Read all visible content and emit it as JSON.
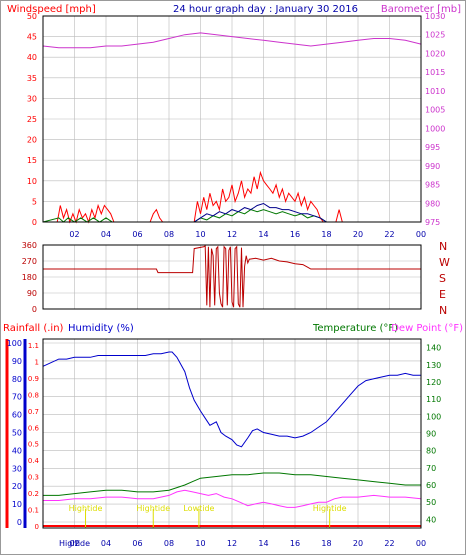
{
  "colors": {
    "wind": "#ff0000",
    "gust": "#ff0000",
    "wind_avg": "#00008b",
    "baro": "#cc33cc",
    "dir": "#bb0000",
    "rain": "#ff0000",
    "humidity": "#0000cc",
    "temp": "#007700",
    "dew": "#ff33ff",
    "tide": "#dddd00",
    "grid": "#bbbbbb",
    "axis": "#000000",
    "title": "#0000aa"
  },
  "chart_data": [
    {
      "type": "line",
      "panel": "wind-barometer",
      "title": "24 hour graph day : January 30 2016",
      "ylabel_left": "Windspeed [mph]",
      "ylabel_right": "Barometer [mb]",
      "ylim_left": [
        0,
        50
      ],
      "ylim_right": [
        975,
        1030
      ],
      "yticks_left": [
        "0",
        "5",
        "10",
        "15",
        "20",
        "25",
        "30",
        "35",
        "40",
        "45",
        "50"
      ],
      "yticks_right": [
        "975",
        "980",
        "985",
        "990",
        "995",
        "1000",
        "1005",
        "1010",
        "1015",
        "1020",
        "1025",
        "1030"
      ],
      "xlim": [
        0,
        24
      ],
      "xticks": [
        "02",
        "04",
        "06",
        "08",
        "10",
        "12",
        "14",
        "16",
        "18",
        "20",
        "22",
        "00"
      ],
      "series": [
        {
          "role": "wind-gust",
          "x": [
            0,
            0.9,
            1,
            1.1,
            1.3,
            1.5,
            1.7,
            1.9,
            2.1,
            2.3,
            2.5,
            2.7,
            2.9,
            3.1,
            3.3,
            3.5,
            3.7,
            3.9,
            4.1,
            4.3,
            4.5,
            6.8,
            7,
            7.2,
            7.4,
            7.6,
            9.6,
            9.8,
            10,
            10.2,
            10.4,
            10.6,
            10.8,
            11,
            11.2,
            11.4,
            11.6,
            11.8,
            12,
            12.2,
            12.4,
            12.6,
            12.8,
            13,
            13.2,
            13.4,
            13.6,
            13.8,
            14,
            14.2,
            14.4,
            14.6,
            14.8,
            15,
            15.2,
            15.4,
            15.6,
            15.8,
            16,
            16.2,
            16.4,
            16.6,
            16.8,
            17,
            17.2,
            17.4,
            17.6,
            17.8,
            18,
            18.2,
            18.4,
            18.6,
            18.8,
            19,
            19.2,
            24
          ],
          "y": [
            0,
            0,
            2,
            4,
            1,
            3,
            0,
            2,
            0,
            3,
            1,
            2,
            0,
            3,
            1,
            4,
            2,
            4,
            3,
            2,
            0,
            0,
            2,
            3,
            1,
            0,
            0,
            5,
            2,
            6,
            3,
            7,
            4,
            5,
            3,
            8,
            5,
            6,
            9,
            5,
            7,
            10,
            6,
            8,
            7,
            11,
            8,
            12,
            10,
            9,
            8,
            7,
            9,
            6,
            8,
            5,
            7,
            6,
            5,
            7,
            4,
            6,
            3,
            5,
            4,
            3,
            1,
            0,
            0,
            0,
            0,
            0,
            3,
            0,
            0,
            0
          ]
        },
        {
          "role": "wind-avg",
          "x": [
            0,
            9.6,
            10,
            10.4,
            10.8,
            11.2,
            11.6,
            12,
            12.4,
            12.8,
            13.2,
            13.6,
            14,
            14.4,
            14.8,
            15.2,
            15.6,
            16,
            16.4,
            16.8,
            17.2,
            17.6,
            18,
            24
          ],
          "y": [
            0,
            0,
            1,
            2,
            1.5,
            2.5,
            2,
            3,
            2.5,
            3.5,
            3,
            4,
            4.5,
            3.5,
            3.5,
            3,
            3,
            2.5,
            2,
            2,
            1.5,
            1,
            0,
            0
          ]
        },
        {
          "role": "wind-green",
          "x": [
            0,
            1,
            1.3,
            1.6,
            2,
            2.4,
            2.8,
            3.2,
            3.6,
            4,
            4.4,
            9.6,
            10,
            10.4,
            10.8,
            11.2,
            11.6,
            12,
            12.4,
            12.8,
            13.2,
            13.6,
            14,
            14.4,
            14.8,
            15.2,
            15.6,
            16,
            16.4,
            16.8,
            17.2,
            17.6,
            18,
            24
          ],
          "y": [
            0,
            1,
            0,
            1,
            0,
            1,
            0,
            1,
            0,
            1,
            0,
            0,
            1,
            0.5,
            1.5,
            1,
            2,
            1.5,
            2.5,
            2,
            3,
            2.5,
            3,
            2.5,
            2,
            2.5,
            2,
            1.5,
            2,
            1,
            1.5,
            1,
            0,
            0
          ]
        },
        {
          "role": "barometer",
          "x": [
            0,
            1,
            2,
            3,
            4,
            5,
            6,
            7,
            8,
            9,
            10,
            11,
            12,
            13,
            14,
            15,
            16,
            17,
            18,
            19,
            20,
            21,
            22,
            23,
            24
          ],
          "y": [
            1022,
            1021.5,
            1021.5,
            1021.5,
            1022,
            1022,
            1022.5,
            1023,
            1024,
            1025,
            1025.5,
            1025,
            1024.5,
            1024,
            1023.5,
            1023,
            1022.5,
            1022,
            1022.5,
            1023,
            1023.5,
            1024,
            1024,
            1023.5,
            1022.5
          ]
        }
      ]
    },
    {
      "type": "line",
      "panel": "wind-direction",
      "ylim": [
        0,
        360
      ],
      "yticks": [
        "0",
        "90",
        "180",
        "270",
        "360"
      ],
      "compass_labels": [
        "N",
        "W",
        "S",
        "E",
        "N"
      ],
      "xlim": [
        0,
        24
      ],
      "series": [
        {
          "role": "direction",
          "x": [
            0,
            7.2,
            7.3,
            9.5,
            9.6,
            10.2,
            10.3,
            10.4,
            10.5,
            10.6,
            10.7,
            10.8,
            10.9,
            11,
            11.1,
            11.2,
            11.3,
            11.4,
            11.5,
            11.6,
            11.7,
            11.8,
            11.9,
            12,
            12.1,
            12.2,
            12.3,
            12.4,
            12.5,
            12.6,
            12.7,
            12.8,
            12.9,
            13,
            13.1,
            13.5,
            14,
            14.5,
            15,
            15.5,
            16,
            16.5,
            16.8,
            17,
            24
          ],
          "y": [
            225,
            225,
            205,
            205,
            340,
            350,
            355,
            20,
            350,
            10,
            340,
            300,
            20,
            340,
            350,
            90,
            30,
            10,
            350,
            340,
            20,
            330,
            350,
            40,
            10,
            340,
            350,
            30,
            10,
            345,
            10,
            240,
            300,
            260,
            280,
            285,
            275,
            285,
            270,
            265,
            255,
            250,
            235,
            225,
            225
          ]
        }
      ]
    },
    {
      "type": "line",
      "panel": "rain-humidity-temperature",
      "ylabel_rain": "Rainfall (.in)",
      "ylabel_humidity": "Humidity (%)",
      "ylabel_temp": "Temperature (°F)",
      "ylabel_dew": "Dew Point (°F)",
      "rain_ticks": [
        "0",
        "0.1",
        "0.2",
        "0.3",
        "0.4",
        "0.5",
        "0.6",
        "0.7",
        "0.8",
        "0.9",
        "1",
        "1.1"
      ],
      "humidity_ticks": [
        "0",
        "10",
        "20",
        "30",
        "40",
        "50",
        "60",
        "70",
        "80",
        "90",
        "100"
      ],
      "temp_ticks": [
        "40",
        "50",
        "60",
        "70",
        "80",
        "90",
        "100",
        "110",
        "120",
        "130",
        "140"
      ],
      "ylim_humidity": [
        0,
        100
      ],
      "ylim_temp": [
        35,
        145
      ],
      "xlim": [
        0,
        24
      ],
      "xticks": [
        "02",
        "04",
        "06",
        "08",
        "10",
        "12",
        "14",
        "16",
        "18",
        "20",
        "22",
        "00"
      ],
      "tide_labels": [
        {
          "text": "Hightide",
          "x": 2.7
        },
        {
          "text": "Hightide",
          "x": 7.0
        },
        {
          "text": "Lowtide",
          "x": 9.9
        },
        {
          "text": "Hightide",
          "x": 18.2
        }
      ],
      "bottom_labels": [
        {
          "text": "High",
          "x": 1.6
        },
        {
          "text": "tide",
          "x": 2.5
        }
      ],
      "series": [
        {
          "role": "humidity",
          "x": [
            0,
            0.5,
            1,
            1.5,
            2,
            2.5,
            3,
            3.5,
            4,
            4.5,
            5,
            5.5,
            6,
            6.5,
            7,
            7.5,
            8,
            8.2,
            8.5,
            9,
            9.3,
            9.6,
            10,
            10.3,
            10.6,
            11,
            11.3,
            11.6,
            12,
            12.3,
            12.6,
            13,
            13.3,
            13.6,
            14,
            14.5,
            15,
            15.5,
            16,
            16.5,
            17,
            17.5,
            18,
            18.5,
            19,
            19.5,
            20,
            20.5,
            21,
            21.5,
            22,
            22.5,
            23,
            23.5,
            24
          ],
          "y": [
            87,
            89,
            91,
            91,
            92,
            92,
            92,
            93,
            93,
            93,
            93,
            93,
            93,
            93,
            94,
            94,
            95,
            95,
            92,
            84,
            75,
            68,
            62,
            58,
            54,
            56,
            50,
            48,
            46,
            43,
            42,
            47,
            51,
            52,
            50,
            49,
            48,
            48,
            47,
            48,
            50,
            53,
            56,
            61,
            66,
            71,
            76,
            79,
            80,
            81,
            82,
            82,
            83,
            82,
            82
          ]
        },
        {
          "role": "temperature",
          "x": [
            0,
            1,
            2,
            3,
            4,
            5,
            6,
            7,
            8,
            9,
            9.5,
            10,
            11,
            12,
            13,
            14,
            15,
            16,
            17,
            18,
            19,
            20,
            21,
            22,
            23,
            24
          ],
          "y": [
            54,
            54,
            55,
            56,
            57,
            57,
            56,
            56,
            57,
            60,
            62,
            64,
            65,
            66,
            66,
            67,
            67,
            66,
            66,
            65,
            64,
            63,
            62,
            61,
            60,
            60
          ]
        },
        {
          "role": "dew-point",
          "x": [
            0,
            1,
            2,
            3,
            4,
            5,
            6,
            7,
            8,
            8.5,
            9,
            9.5,
            10,
            10.5,
            11,
            11.5,
            12,
            12.5,
            13,
            13.5,
            14,
            14.5,
            15,
            15.5,
            16,
            16.5,
            17,
            17.5,
            18,
            18.5,
            19,
            20,
            21,
            22,
            23,
            24
          ],
          "y": [
            51,
            51,
            52,
            52,
            53,
            53,
            52,
            52,
            54,
            56,
            57,
            56,
            55,
            54,
            55,
            53,
            52,
            50,
            48,
            49,
            50,
            49,
            48,
            47,
            47,
            48,
            49,
            50,
            50,
            52,
            53,
            53,
            54,
            53,
            53,
            52
          ]
        },
        {
          "role": "rainfall",
          "x": [
            0,
            24
          ],
          "y": [
            0,
            0
          ]
        }
      ]
    }
  ]
}
